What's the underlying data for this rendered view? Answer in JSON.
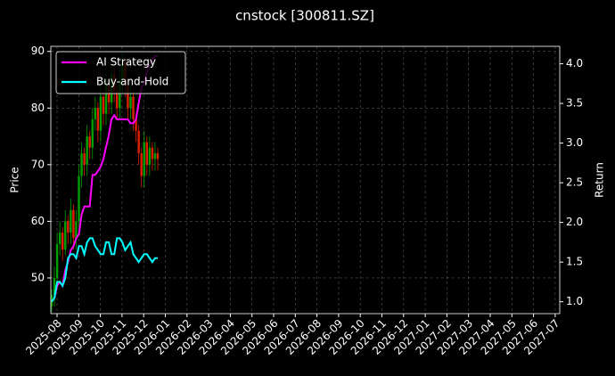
{
  "chart_data": {
    "type": "candlestick",
    "title": "cnstock [300811.SZ]",
    "ylabel": "Price",
    "y2label": "Return",
    "ylim": [
      43.7,
      90.9
    ],
    "yticks": [
      50,
      60,
      70,
      80,
      90
    ],
    "y2lim": [
      0.85,
      4.22
    ],
    "y2ticks": [
      {
        "value": 1.0,
        "label": "1.0"
      },
      {
        "value": 1.5,
        "label": "1.5"
      },
      {
        "value": 2.0,
        "label": "2.0"
      },
      {
        "value": 2.5,
        "label": "2.5"
      },
      {
        "value": 3.0,
        "label": "3.0"
      },
      {
        "value": 3.5,
        "label": "3.5"
      },
      {
        "value": 4.0,
        "label": "4.0"
      }
    ],
    "xticks": [
      "2025-08",
      "2025-09",
      "2025-10",
      "2025-11",
      "2025-12",
      "2026-01",
      "2026-02",
      "2026-03",
      "2026-04",
      "2026-05",
      "2026-06",
      "2026-07",
      "2026-08",
      "2026-09",
      "2026-10",
      "2026-11",
      "2026-12",
      "2027-01",
      "2027-02",
      "2027-03",
      "2027-04",
      "2027-05",
      "2027-06",
      "2027-07"
    ],
    "grid": true,
    "legend": "upper left",
    "up_color": "#00a000",
    "down_color": "#e02000",
    "candles": {
      "open": [
        45,
        47,
        50,
        56,
        58,
        55,
        60,
        58,
        62,
        57,
        60,
        68,
        72,
        70,
        75,
        73,
        78,
        80,
        76,
        82,
        79,
        84,
        81,
        86,
        83,
        80,
        85,
        88,
        84,
        80,
        82,
        78,
        76,
        72,
        68,
        74,
        70,
        73,
        71,
        72
      ],
      "high": [
        48,
        52,
        58,
        60,
        59,
        62,
        61,
        64,
        63,
        62,
        70,
        74,
        73,
        77,
        76,
        80,
        82,
        81,
        84,
        83,
        86,
        85,
        88,
        87,
        84,
        87,
        90,
        89,
        85,
        84,
        83,
        79,
        77,
        73,
        76,
        75,
        75,
        74,
        74,
        73
      ],
      "low": [
        44,
        45,
        48,
        54,
        53,
        54,
        56,
        56,
        55,
        55,
        58,
        66,
        68,
        68,
        71,
        71,
        76,
        74,
        74,
        77,
        77,
        79,
        79,
        81,
        78,
        78,
        83,
        82,
        78,
        78,
        76,
        74,
        70,
        66,
        66,
        68,
        68,
        69,
        69,
        69
      ],
      "close": [
        47,
        50,
        56,
        58,
        55,
        60,
        58,
        62,
        57,
        60,
        68,
        72,
        70,
        75,
        73,
        78,
        80,
        76,
        82,
        79,
        84,
        81,
        86,
        83,
        80,
        85,
        88,
        84,
        80,
        82,
        78,
        76,
        72,
        68,
        74,
        70,
        73,
        71,
        72,
        71
      ]
    },
    "series": [
      {
        "name": "AI Strategy",
        "color": "#ff00ff",
        "axis": "y2",
        "values": [
          1.0,
          1.05,
          1.2,
          1.25,
          1.2,
          1.4,
          1.5,
          1.65,
          1.7,
          1.8,
          1.85,
          2.1,
          2.2,
          2.2,
          2.2,
          2.6,
          2.6,
          2.65,
          2.7,
          2.8,
          2.95,
          3.1,
          3.3,
          3.35,
          3.3,
          3.3,
          3.3,
          3.3,
          3.3,
          3.25,
          3.25,
          3.3,
          3.5,
          3.7,
          3.75,
          3.9,
          4.0,
          4.05,
          4.1,
          4.1
        ]
      },
      {
        "name": "Buy-and-Hold",
        "color": "#00ffff",
        "axis": "y2",
        "values": [
          1.0,
          1.05,
          1.25,
          1.25,
          1.2,
          1.3,
          1.55,
          1.6,
          1.6,
          1.55,
          1.7,
          1.7,
          1.6,
          1.75,
          1.8,
          1.8,
          1.7,
          1.65,
          1.6,
          1.6,
          1.75,
          1.75,
          1.6,
          1.6,
          1.8,
          1.8,
          1.75,
          1.65,
          1.7,
          1.75,
          1.6,
          1.55,
          1.5,
          1.55,
          1.6,
          1.6,
          1.55,
          1.5,
          1.55,
          1.55
        ]
      }
    ]
  }
}
